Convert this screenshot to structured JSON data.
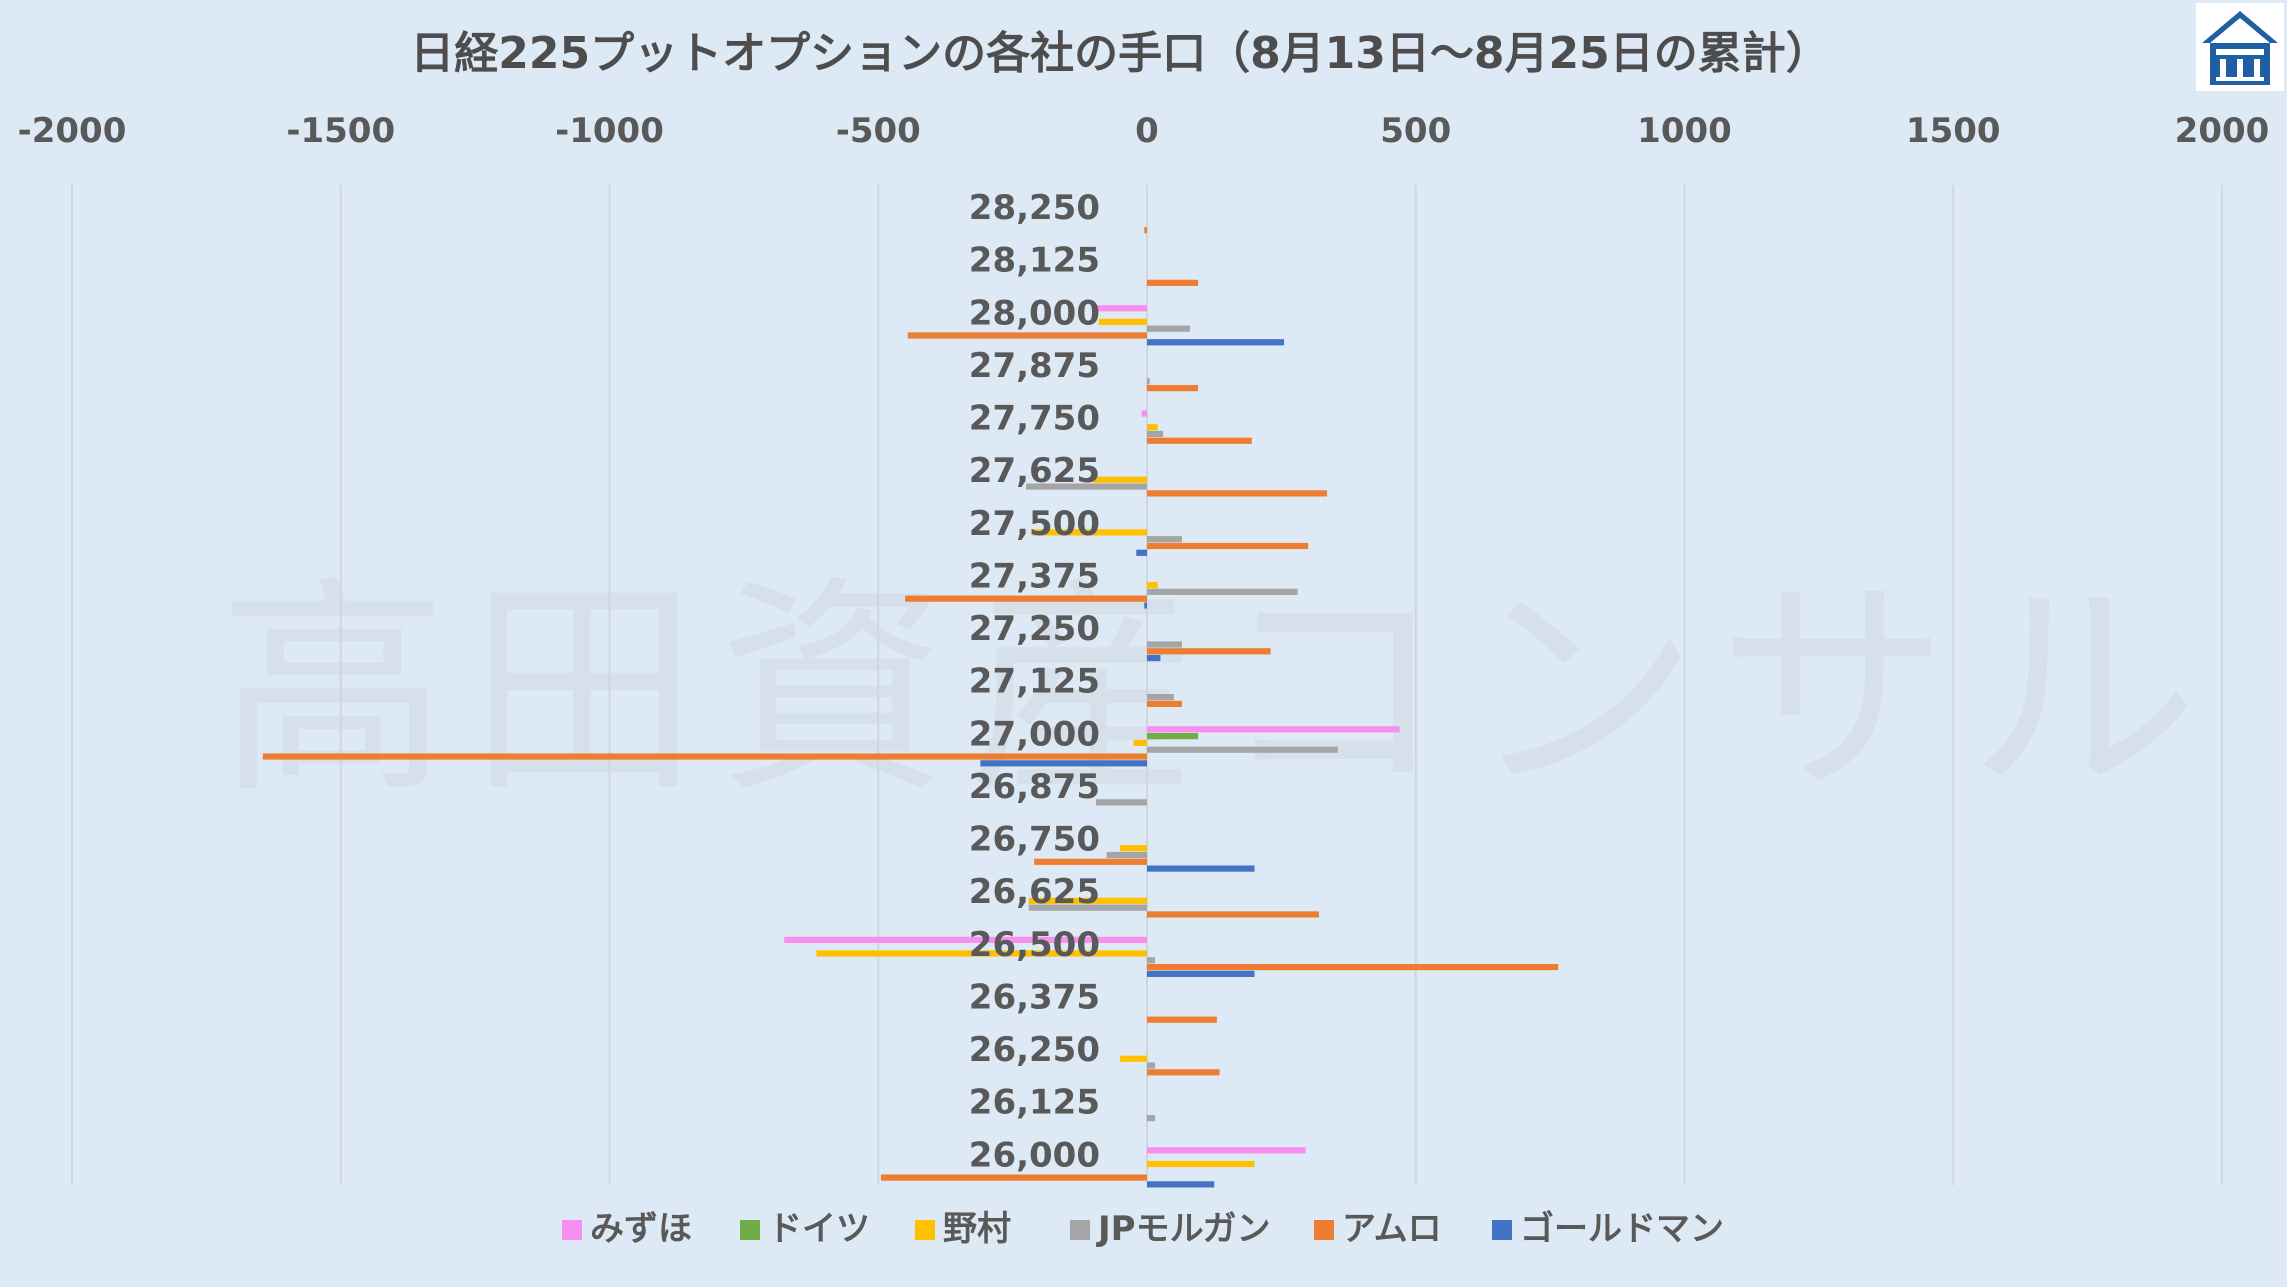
{
  "chart_data": {
    "type": "bar",
    "orientation": "horizontal",
    "title": "日経225プットオプションの各社の手口（8月13日～8月25日の累計）",
    "xlim": [
      -2000,
      2000
    ],
    "xticks": [
      "-2000",
      "-1500",
      "-1000",
      "-500",
      "0",
      "500",
      "1000",
      "1500",
      "2000"
    ],
    "xtick_values": [
      -2000,
      -1500,
      -1000,
      -500,
      0,
      500,
      1000,
      1500,
      2000
    ],
    "grid": "vertical",
    "legend_position": "bottom",
    "categories": [
      "28,250",
      "28,125",
      "28,000",
      "27,875",
      "27,750",
      "27,625",
      "27,500",
      "27,375",
      "27,250",
      "27,125",
      "27,000",
      "26,875",
      "26,750",
      "26,625",
      "26,500",
      "26,375",
      "26,250",
      "26,125",
      "26,000"
    ],
    "series": [
      {
        "name": "みずほ",
        "color": "#f78ef0",
        "values": [
          0,
          0,
          -100,
          0,
          -10,
          0,
          0,
          0,
          0,
          0,
          470,
          0,
          0,
          0,
          -675,
          0,
          0,
          0,
          295
        ]
      },
      {
        "name": "ドイツ",
        "color": "#70ad47",
        "values": [
          0,
          0,
          0,
          0,
          0,
          0,
          0,
          0,
          0,
          0,
          95,
          0,
          0,
          0,
          0,
          0,
          0,
          0,
          0
        ]
      },
      {
        "name": "野村",
        "color": "#ffc000",
        "values": [
          0,
          0,
          -90,
          0,
          20,
          -100,
          -215,
          20,
          0,
          0,
          -25,
          0,
          -50,
          -220,
          -615,
          0,
          -50,
          0,
          200
        ]
      },
      {
        "name": "JPモルガン",
        "color": "#a5a5a5",
        "values": [
          0,
          0,
          80,
          5,
          30,
          -225,
          65,
          280,
          65,
          50,
          355,
          -95,
          -75,
          -220,
          15,
          0,
          15,
          15,
          0
        ]
      },
      {
        "name": "アムロ",
        "color": "#ed7d31",
        "values": [
          -5,
          95,
          -445,
          95,
          195,
          335,
          300,
          -450,
          230,
          65,
          -1645,
          0,
          -210,
          320,
          765,
          130,
          135,
          0,
          -495
        ]
      },
      {
        "name": "ゴールドマン",
        "color": "#4472c4",
        "values": [
          0,
          0,
          255,
          0,
          0,
          0,
          -20,
          -5,
          25,
          0,
          -310,
          0,
          200,
          0,
          200,
          0,
          0,
          0,
          125
        ]
      }
    ]
  },
  "watermark": "高田資産コンサル",
  "logo": {
    "icon": "building-logo-icon",
    "bg": "#1f5fa3"
  }
}
